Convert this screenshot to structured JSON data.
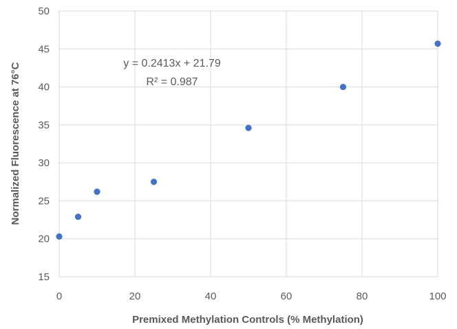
{
  "chart_data": {
    "type": "scatter",
    "title": "",
    "xlabel": "Premixed Methylation Controls (% Methylation)",
    "ylabel": "Normalized Fluorescence at 76°C",
    "xlim": [
      0,
      100
    ],
    "ylim": [
      15,
      50
    ],
    "x_ticks": [
      0,
      20,
      40,
      60,
      80,
      100
    ],
    "y_ticks": [
      15,
      20,
      25,
      30,
      35,
      40,
      45,
      50
    ],
    "grid": true,
    "legend": "none",
    "series": [
      {
        "x": [
          0,
          5,
          10,
          25,
          50,
          75,
          100
        ],
        "y": [
          20.3,
          22.9,
          26.2,
          27.5,
          34.6,
          40.0,
          45.7
        ]
      }
    ],
    "trendline_equation": "y = 0.2413x + 21.79",
    "trendline_r2": "R² = 0.987",
    "colors": {
      "marker": "#4472c4",
      "grid": "#d9d9d9",
      "text": "#595959"
    }
  }
}
